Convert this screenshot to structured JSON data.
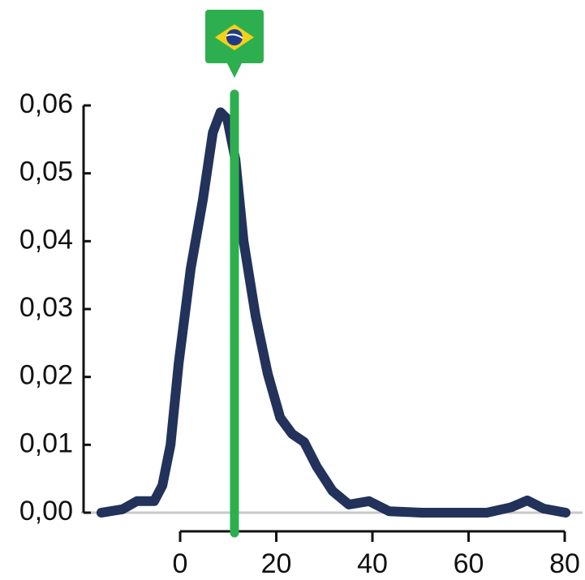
{
  "chart_data": {
    "type": "line",
    "x": [
      -16.4,
      -12,
      -9,
      -5.4,
      -3.7,
      -2,
      -0.3,
      2.2,
      4.7,
      6.8,
      8.4,
      9.8,
      11.5,
      13.2,
      15.7,
      18.2,
      20.8,
      23.3,
      25.8,
      28.4,
      31.7,
      35.1,
      39.3,
      43.5,
      50.3,
      63.8,
      68.9,
      72.2,
      75.6,
      80.2
    ],
    "series": [
      {
        "color": "#22325a",
        "values": [
          0,
          0.0005,
          0.0017,
          0.0017,
          0.004,
          0.01,
          0.022,
          0.036,
          0.046,
          0.056,
          0.059,
          0.058,
          0.052,
          0.04,
          0.029,
          0.0205,
          0.014,
          0.0116,
          0.0104,
          0.0068,
          0.0032,
          0.0012,
          0.0017,
          0.0002,
          0,
          0,
          0.0008,
          0.0018,
          0.0006,
          0
        ]
      }
    ],
    "highlight": {
      "x": 11.3,
      "color": "#2eaf4f"
    },
    "xlim": [
      -17,
      84
    ],
    "ylim": [
      0,
      0.06
    ],
    "xticks": [
      0,
      20,
      40,
      60,
      80
    ],
    "yticks": [
      {
        "value": 0,
        "label": "0,00"
      },
      {
        "value": 0.01,
        "label": "0,01"
      },
      {
        "value": 0.02,
        "label": "0,02"
      },
      {
        "value": 0.03,
        "label": "0,03"
      },
      {
        "value": 0.04,
        "label": "0,04"
      },
      {
        "value": 0.05,
        "label": "0,05"
      },
      {
        "value": 0.06,
        "label": "0,06"
      }
    ]
  }
}
